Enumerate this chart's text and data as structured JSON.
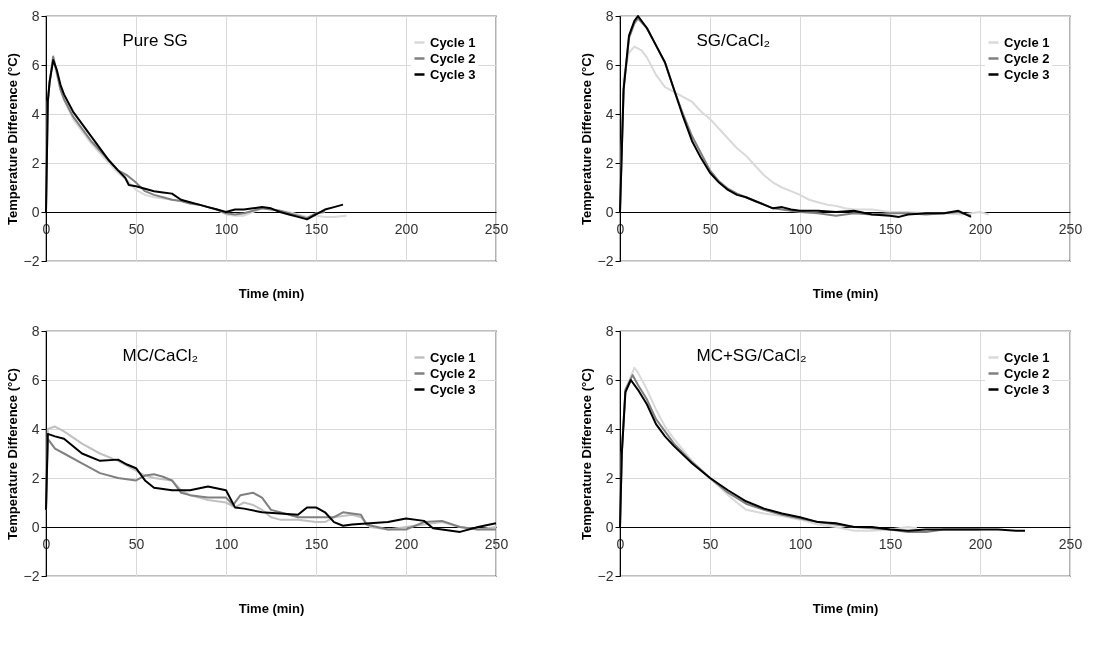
{
  "chart_data": [
    {
      "type": "line",
      "title": "Pure SG",
      "xlabel": "Time (min)",
      "ylabel": "Temperature Difference (°C)",
      "xlim": [
        0,
        250
      ],
      "xticks": [
        0,
        50,
        100,
        150,
        200,
        250
      ],
      "ylim": [
        -2,
        8
      ],
      "yticks": [
        -2,
        0,
        2,
        4,
        6,
        8
      ],
      "grid": true,
      "legend": "top right",
      "series": [
        {
          "name": "Cycle 1",
          "color": "#d9d9d9",
          "x": [
            0,
            1,
            2,
            4,
            6,
            8,
            10,
            15,
            20,
            25,
            30,
            35,
            40,
            45,
            50,
            55,
            60,
            65,
            70,
            75,
            80,
            85,
            90,
            95,
            100,
            105,
            110,
            115,
            120,
            125,
            130,
            135,
            140,
            145,
            150,
            155,
            160,
            167
          ],
          "values": [
            0,
            4.5,
            5.3,
            6.3,
            5.6,
            5.0,
            4.6,
            3.8,
            3.3,
            2.8,
            2.4,
            2.0,
            1.6,
            1.3,
            0.9,
            0.7,
            0.6,
            0.55,
            0.5,
            0.45,
            0.35,
            0.3,
            0.2,
            0.1,
            -0.1,
            -0.15,
            -0.15,
            0.0,
            0.15,
            0.1,
            0.05,
            0.0,
            -0.1,
            -0.2,
            -0.15,
            -0.2,
            -0.2,
            -0.15
          ]
        },
        {
          "name": "Cycle 2",
          "color": "#808080",
          "x": [
            0,
            1,
            2,
            4,
            6,
            8,
            10,
            15,
            20,
            25,
            30,
            35,
            40,
            45,
            50,
            55,
            60,
            65,
            70,
            75,
            80,
            85,
            90,
            95,
            100,
            105,
            110,
            115,
            120,
            125,
            130,
            135,
            140,
            145,
            150,
            155
          ],
          "values": [
            0,
            4.5,
            5.3,
            6.35,
            5.7,
            5.0,
            4.6,
            3.9,
            3.4,
            2.9,
            2.5,
            2.1,
            1.7,
            1.5,
            1.2,
            0.85,
            0.7,
            0.6,
            0.5,
            0.45,
            0.35,
            0.3,
            0.2,
            0.1,
            -0.05,
            -0.1,
            -0.05,
            0.05,
            0.15,
            0.1,
            0.05,
            -0.05,
            -0.15,
            -0.25,
            -0.05,
            0.0
          ]
        },
        {
          "name": "Cycle 3",
          "color": "#000000",
          "x": [
            0,
            1,
            2,
            4,
            6,
            8,
            10,
            15,
            20,
            25,
            30,
            35,
            40,
            44,
            46,
            50,
            55,
            60,
            65,
            70,
            75,
            80,
            85,
            90,
            95,
            100,
            105,
            110,
            115,
            120,
            125,
            130,
            135,
            140,
            145,
            150,
            155,
            160,
            165
          ],
          "values": [
            0,
            4.5,
            5.3,
            6.2,
            5.8,
            5.2,
            4.8,
            4.1,
            3.6,
            3.1,
            2.6,
            2.1,
            1.7,
            1.4,
            1.1,
            1.05,
            0.95,
            0.85,
            0.8,
            0.75,
            0.5,
            0.4,
            0.3,
            0.2,
            0.1,
            0.0,
            0.1,
            0.1,
            0.15,
            0.2,
            0.15,
            0.0,
            -0.1,
            -0.2,
            -0.3,
            -0.1,
            0.1,
            0.2,
            0.3
          ]
        }
      ]
    },
    {
      "type": "line",
      "title": "SG/CaCl₂",
      "xlabel": "Time (min)",
      "ylabel": "Temperature Difference (°C)",
      "xlim": [
        0,
        250
      ],
      "xticks": [
        0,
        50,
        100,
        150,
        200,
        250
      ],
      "ylim": [
        -2,
        8
      ],
      "yticks": [
        -2,
        0,
        2,
        4,
        6,
        8
      ],
      "grid": true,
      "legend": "top right",
      "series": [
        {
          "name": "Cycle 1",
          "color": "#d9d9d9",
          "x": [
            0,
            2,
            5,
            8,
            12,
            15,
            20,
            25,
            30,
            35,
            40,
            45,
            50,
            55,
            60,
            65,
            70,
            75,
            80,
            85,
            90,
            95,
            100,
            105,
            110,
            115,
            120,
            125,
            130,
            140,
            150,
            160,
            170,
            180,
            190,
            200,
            205
          ],
          "values": [
            0,
            5.5,
            6.5,
            6.75,
            6.6,
            6.3,
            5.6,
            5.1,
            4.9,
            4.7,
            4.5,
            4.1,
            3.8,
            3.4,
            3.0,
            2.6,
            2.3,
            1.9,
            1.5,
            1.2,
            1.0,
            0.85,
            0.7,
            0.5,
            0.4,
            0.3,
            0.25,
            0.15,
            0.1,
            0.1,
            0.0,
            0.0,
            -0.05,
            -0.05,
            -0.1,
            0.0,
            -0.1
          ]
        },
        {
          "name": "Cycle 2",
          "color": "#808080",
          "x": [
            0,
            2,
            5,
            8,
            10,
            15,
            20,
            25,
            30,
            35,
            40,
            45,
            50,
            55,
            60,
            65,
            70,
            75,
            80,
            85,
            90,
            95,
            100,
            110,
            120,
            130,
            140,
            150,
            160,
            170,
            180,
            188,
            195
          ],
          "values": [
            0,
            5,
            7.1,
            7.7,
            7.9,
            7.5,
            6.8,
            6.1,
            5.0,
            4.0,
            3.1,
            2.4,
            1.7,
            1.25,
            0.95,
            0.75,
            0.6,
            0.45,
            0.3,
            0.15,
            0.1,
            0.05,
            0.0,
            -0.05,
            -0.15,
            -0.05,
            -0.1,
            -0.05,
            -0.05,
            -0.1,
            -0.05,
            0.0,
            -0.15
          ]
        },
        {
          "name": "Cycle 3",
          "color": "#000000",
          "x": [
            0,
            2,
            5,
            8,
            10,
            15,
            20,
            25,
            30,
            35,
            40,
            45,
            50,
            55,
            60,
            65,
            70,
            75,
            80,
            85,
            90,
            95,
            100,
            110,
            120,
            130,
            140,
            150,
            155,
            160,
            170,
            180,
            188,
            195
          ],
          "values": [
            0,
            5,
            7.2,
            7.8,
            8.0,
            7.5,
            6.8,
            6.1,
            5.0,
            3.9,
            2.9,
            2.2,
            1.6,
            1.2,
            0.9,
            0.7,
            0.6,
            0.45,
            0.3,
            0.15,
            0.2,
            0.1,
            0.05,
            0.05,
            0.0,
            0.05,
            -0.1,
            -0.15,
            -0.2,
            -0.1,
            -0.05,
            -0.05,
            0.05,
            -0.2
          ]
        }
      ]
    },
    {
      "type": "line",
      "title": "MC/CaCl₂",
      "xlabel": "Time (min)",
      "ylabel": "Temperature Difference (°C)",
      "xlim": [
        0,
        250
      ],
      "xticks": [
        0,
        50,
        100,
        150,
        200,
        250
      ],
      "ylim": [
        -2,
        8
      ],
      "yticks": [
        -2,
        0,
        2,
        4,
        6,
        8
      ],
      "grid": true,
      "legend": "top right",
      "series": [
        {
          "name": "Cycle 1",
          "color": "#c0c0c0",
          "x": [
            0,
            1,
            5,
            10,
            20,
            30,
            40,
            50,
            55,
            60,
            70,
            75,
            80,
            90,
            100,
            105,
            110,
            115,
            120,
            125,
            130,
            140,
            150,
            155,
            160,
            170,
            175,
            180,
            190,
            200,
            210,
            220,
            230,
            240,
            250
          ],
          "values": [
            0.7,
            4.0,
            4.1,
            3.9,
            3.4,
            3.0,
            2.7,
            2.3,
            2.1,
            2.0,
            1.9,
            1.5,
            1.3,
            1.1,
            1.0,
            0.8,
            1.0,
            0.9,
            0.7,
            0.4,
            0.3,
            0.3,
            0.2,
            0.2,
            0.4,
            0.5,
            0.4,
            0.0,
            -0.1,
            0.0,
            0.1,
            0.2,
            0.0,
            -0.1,
            0.0
          ]
        },
        {
          "name": "Cycle 2",
          "color": "#808080",
          "x": [
            0,
            1,
            5,
            10,
            20,
            30,
            40,
            50,
            55,
            60,
            65,
            70,
            75,
            80,
            90,
            100,
            104,
            108,
            115,
            120,
            125,
            130,
            140,
            150,
            160,
            165,
            175,
            178,
            190,
            200,
            210,
            220,
            230,
            240,
            250
          ],
          "values": [
            0.7,
            3.6,
            3.2,
            3.0,
            2.6,
            2.2,
            2.0,
            1.9,
            2.1,
            2.15,
            2.05,
            1.9,
            1.4,
            1.3,
            1.2,
            1.2,
            0.9,
            1.3,
            1.4,
            1.2,
            0.7,
            0.6,
            0.4,
            0.4,
            0.4,
            0.6,
            0.5,
            0.1,
            -0.1,
            -0.1,
            0.2,
            0.25,
            0.0,
            -0.1,
            -0.1
          ]
        },
        {
          "name": "Cycle 3",
          "color": "#000000",
          "x": [
            0,
            1,
            5,
            10,
            20,
            30,
            40,
            45,
            50,
            55,
            60,
            70,
            80,
            90,
            100,
            105,
            110,
            120,
            130,
            140,
            145,
            150,
            155,
            160,
            165,
            170,
            180,
            190,
            200,
            210,
            215,
            225,
            230,
            240,
            250
          ],
          "values": [
            0.7,
            3.8,
            3.7,
            3.6,
            3.0,
            2.7,
            2.75,
            2.55,
            2.4,
            1.9,
            1.6,
            1.5,
            1.5,
            1.65,
            1.5,
            0.8,
            0.75,
            0.6,
            0.55,
            0.5,
            0.8,
            0.8,
            0.6,
            0.2,
            0.05,
            0.1,
            0.15,
            0.2,
            0.35,
            0.25,
            -0.05,
            -0.15,
            -0.2,
            0.0,
            0.15
          ]
        }
      ]
    },
    {
      "type": "line",
      "title": "MC+SG/CaCl₂",
      "xlabel": "Time (min)",
      "ylabel": "Temperature Difference (°C)",
      "xlim": [
        0,
        250
      ],
      "xticks": [
        0,
        50,
        100,
        150,
        200,
        250
      ],
      "ylim": [
        -2,
        8
      ],
      "yticks": [
        -2,
        0,
        2,
        4,
        6,
        8
      ],
      "grid": true,
      "legend": "top right",
      "series": [
        {
          "name": "Cycle 1",
          "color": "#d9d9d9",
          "x": [
            0,
            1,
            3,
            8,
            10,
            15,
            20,
            25,
            30,
            40,
            50,
            60,
            70,
            80,
            90,
            100,
            110,
            120,
            130,
            140,
            150,
            160,
            165
          ],
          "values": [
            0,
            3.0,
            5.6,
            6.5,
            6.3,
            5.6,
            4.8,
            4.1,
            3.6,
            2.7,
            2.0,
            1.3,
            0.7,
            0.55,
            0.45,
            0.3,
            0.1,
            0.0,
            -0.15,
            -0.15,
            -0.1,
            0.0,
            -0.05
          ]
        },
        {
          "name": "Cycle 2",
          "color": "#808080",
          "x": [
            0,
            1,
            3,
            7,
            10,
            15,
            20,
            25,
            30,
            40,
            50,
            60,
            70,
            80,
            90,
            100,
            110,
            120,
            130,
            140,
            150,
            160,
            170,
            180,
            190,
            200
          ],
          "values": [
            0,
            3.0,
            5.6,
            6.2,
            5.8,
            5.2,
            4.4,
            3.9,
            3.4,
            2.65,
            2.0,
            1.4,
            0.95,
            0.7,
            0.5,
            0.35,
            0.2,
            0.1,
            0.0,
            -0.05,
            -0.1,
            -0.2,
            -0.2,
            -0.1,
            -0.1,
            -0.1
          ]
        },
        {
          "name": "Cycle 3",
          "color": "#000000",
          "x": [
            0,
            1,
            3,
            6,
            10,
            15,
            20,
            25,
            30,
            40,
            50,
            60,
            70,
            80,
            90,
            100,
            110,
            120,
            130,
            140,
            150,
            160,
            170,
            180,
            190,
            200,
            210,
            220,
            225
          ],
          "values": [
            0,
            3.0,
            5.5,
            6.0,
            5.6,
            5.0,
            4.2,
            3.7,
            3.3,
            2.6,
            2.0,
            1.5,
            1.05,
            0.75,
            0.55,
            0.4,
            0.2,
            0.15,
            0.0,
            0.0,
            -0.1,
            -0.15,
            -0.1,
            -0.1,
            -0.1,
            -0.1,
            -0.1,
            -0.15,
            -0.15
          ]
        }
      ]
    }
  ]
}
